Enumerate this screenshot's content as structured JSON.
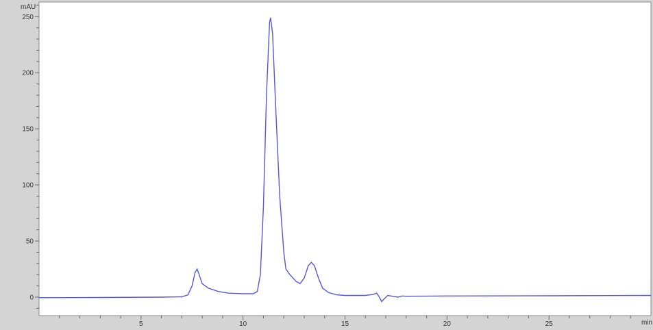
{
  "chart_data": {
    "type": "line",
    "title": "",
    "xlabel": "min",
    "ylabel": "mAU",
    "xlim": [
      0,
      30
    ],
    "ylim": [
      -16.5,
      263
    ],
    "x_ticks": [
      5,
      10,
      15,
      20,
      25
    ],
    "x_minor_step": 1,
    "y_ticks": [
      0,
      50,
      100,
      150,
      200,
      250
    ],
    "y_minor_step": 10,
    "grid": false,
    "legend": "none",
    "line_color": "#5555e0",
    "series": [
      {
        "x": [
          0,
          3,
          6,
          7,
          7.3,
          7.5,
          7.65,
          7.75,
          7.85,
          8.0,
          8.3,
          8.8,
          9.3,
          10,
          10.5,
          10.7,
          10.85,
          11.0,
          11.15,
          11.3,
          11.35,
          11.45,
          11.6,
          11.8,
          12.0,
          12.1,
          12.3,
          12.6,
          12.8,
          13.0,
          13.2,
          13.35,
          13.5,
          13.7,
          13.9,
          14.2,
          14.6,
          15,
          16,
          16.4,
          16.55,
          16.65,
          16.8,
          16.95,
          17.1,
          17.4,
          17.6,
          17.8,
          18,
          20,
          25,
          30
        ],
        "y": [
          -0.5,
          -0.3,
          0,
          0.3,
          2,
          10,
          22,
          25,
          20,
          12,
          8,
          5,
          3.5,
          3,
          3,
          5,
          20,
          80,
          180,
          245,
          249,
          235,
          170,
          90,
          40,
          25,
          20,
          14,
          12,
          17,
          28,
          31,
          28,
          17,
          8,
          4,
          2,
          1.5,
          1.5,
          2.5,
          3.5,
          1,
          -4,
          -1,
          1.5,
          0.5,
          0,
          1,
          0.8,
          1,
          1.2,
          1.5
        ]
      }
    ]
  }
}
